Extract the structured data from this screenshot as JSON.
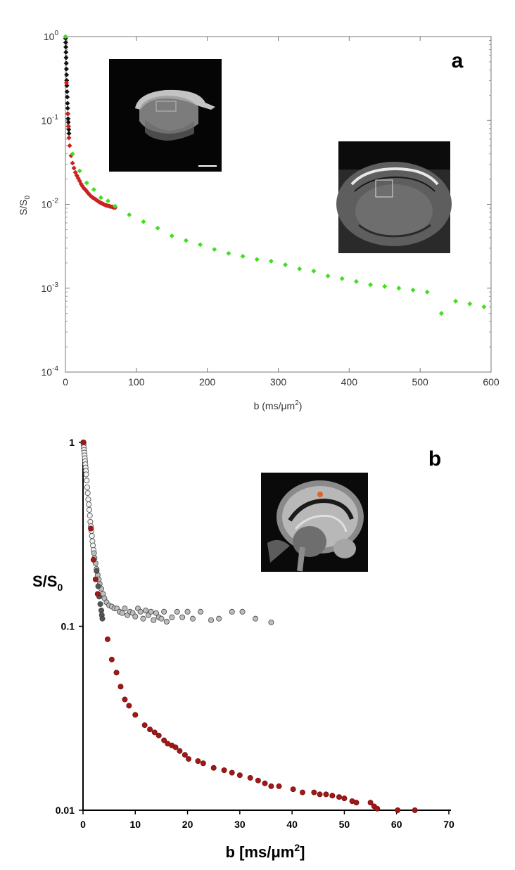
{
  "chart_data": [
    {
      "panel": "a",
      "type": "scatter",
      "panel_label": "a",
      "xlabel": "b (ms/μm",
      "xlabel_sup": "2",
      "xlabel_end": ")",
      "ylabel": "S/S",
      "ylabel_sub": "0",
      "yscale": "log",
      "xlim": [
        0,
        600
      ],
      "ylim": [
        0.0001,
        1
      ],
      "xticks": [
        "0",
        "100",
        "200",
        "300",
        "400",
        "500",
        "600"
      ],
      "yticks": [
        {
          "base": "10",
          "exp": "0"
        },
        {
          "base": "10",
          "exp": "-1"
        },
        {
          "base": "10",
          "exp": "-2"
        },
        {
          "base": "10",
          "exp": "-3"
        },
        {
          "base": "10",
          "exp": "-4"
        }
      ],
      "grid": false,
      "colors": {
        "black": "#111111",
        "red": "#cc2020",
        "green": "#44dd22"
      },
      "series": [
        {
          "color": "black",
          "x": [
            0.2,
            0.4,
            0.6,
            0.8,
            1.0,
            1.2,
            1.4,
            1.6,
            1.8,
            2.0,
            2.3,
            2.6,
            2.9,
            3.2,
            3.5,
            3.8,
            4.1,
            4.4,
            4.7,
            5.0
          ],
          "y": [
            0.95,
            0.85,
            0.75,
            0.65,
            0.56,
            0.48,
            0.41,
            0.35,
            0.3,
            0.26,
            0.22,
            0.19,
            0.16,
            0.14,
            0.12,
            0.105,
            0.095,
            0.085,
            0.078,
            0.07
          ]
        },
        {
          "color": "red",
          "x": [
            1.5,
            3,
            4,
            5,
            6,
            8,
            10,
            12,
            14,
            16,
            18,
            20,
            22,
            24,
            26,
            28,
            30,
            32,
            34,
            36,
            38,
            40,
            42,
            44,
            46,
            48,
            50,
            52,
            54,
            56,
            58,
            60,
            62,
            64,
            66,
            68,
            70
          ],
          "y": [
            0.28,
            0.12,
            0.085,
            0.062,
            0.05,
            0.038,
            0.031,
            0.027,
            0.024,
            0.022,
            0.0205,
            0.019,
            0.0175,
            0.0165,
            0.0155,
            0.015,
            0.0143,
            0.0136,
            0.013,
            0.0125,
            0.0121,
            0.0118,
            0.0115,
            0.0112,
            0.0109,
            0.0106,
            0.0104,
            0.0102,
            0.01,
            0.0098,
            0.0097,
            0.0096,
            0.0095,
            0.0094,
            0.0093,
            0.0092,
            0.0091
          ]
        },
        {
          "color": "green",
          "x": [
            0,
            10,
            20,
            30,
            40,
            50,
            60,
            70,
            90,
            110,
            130,
            150,
            170,
            190,
            210,
            230,
            250,
            270,
            290,
            310,
            330,
            350,
            370,
            390,
            410,
            430,
            450,
            470,
            490,
            510,
            530,
            550,
            570,
            590
          ],
          "y": [
            1.0,
            0.04,
            0.025,
            0.018,
            0.015,
            0.012,
            0.011,
            0.0095,
            0.0075,
            0.0062,
            0.0052,
            0.0042,
            0.0037,
            0.0033,
            0.0029,
            0.0026,
            0.0024,
            0.0022,
            0.0021,
            0.0019,
            0.0017,
            0.0016,
            0.0014,
            0.0013,
            0.0012,
            0.0011,
            0.00105,
            0.001,
            0.00095,
            0.0009,
            0.0005,
            0.0007,
            0.00065,
            0.0006
          ]
        }
      ]
    },
    {
      "panel": "b",
      "type": "scatter",
      "panel_label": "b",
      "xlabel": "b [ms/μm",
      "xlabel_sup": "2",
      "xlabel_end": "]",
      "ylabel": "S/S",
      "ylabel_sub": "0",
      "yscale": "log",
      "xlim": [
        0,
        70
      ],
      "ylim": [
        0.01,
        1
      ],
      "xticks": [
        "0",
        "10",
        "20",
        "30",
        "40",
        "50",
        "60",
        "70"
      ],
      "yticks": [
        "1",
        "0.1",
        "0.01"
      ],
      "grid": false,
      "colors": {
        "red": "#a01818",
        "gray": "#bdbdbd",
        "darkgray": "#555555",
        "white": "#f2f2f2"
      },
      "series": [
        {
          "color": "white",
          "x": [
            0.05,
            0.1,
            0.15,
            0.2,
            0.25,
            0.3,
            0.35,
            0.4,
            0.45,
            0.5,
            0.55,
            0.6,
            0.7,
            0.8,
            0.9,
            1.0,
            1.1,
            1.2,
            1.3,
            1.4,
            1.5,
            1.6,
            1.7,
            1.8,
            1.9,
            2.0
          ],
          "y": [
            1.0,
            0.97,
            0.94,
            0.91,
            0.88,
            0.85,
            0.82,
            0.79,
            0.76,
            0.73,
            0.7,
            0.67,
            0.62,
            0.57,
            0.53,
            0.49,
            0.46,
            0.43,
            0.4,
            0.37,
            0.35,
            0.33,
            0.31,
            0.29,
            0.275,
            0.26
          ]
        },
        {
          "color": "gray",
          "x": [
            2.1,
            2.2,
            2.4,
            2.6,
            2.8,
            3.0,
            3.2,
            3.5,
            3.8,
            4.1,
            4.5,
            5.0,
            5.5,
            6.0,
            6.5,
            7.0,
            7.5,
            8.0,
            8.5,
            9.0,
            9.5,
            10.0,
            10.5,
            11.0,
            11.5,
            12.0,
            12.5,
            13.0,
            13.5,
            14.0,
            14.5,
            15.0,
            15.5,
            16.0,
            17.0,
            18.0,
            19.0,
            20.0,
            21.0,
            22.5,
            24.5,
            26.0,
            28.5,
            30.5,
            33.0,
            36.0
          ],
          "y": [
            0.25,
            0.235,
            0.22,
            0.205,
            0.19,
            0.18,
            0.17,
            0.16,
            0.15,
            0.142,
            0.135,
            0.13,
            0.128,
            0.125,
            0.125,
            0.12,
            0.118,
            0.125,
            0.115,
            0.12,
            0.118,
            0.113,
            0.125,
            0.12,
            0.11,
            0.122,
            0.115,
            0.12,
            0.108,
            0.118,
            0.112,
            0.11,
            0.12,
            0.106,
            0.112,
            0.12,
            0.112,
            0.12,
            0.11,
            0.12,
            0.108,
            0.11,
            0.12,
            0.12,
            0.11,
            0.105
          ]
        },
        {
          "color": "darkgray",
          "x": [
            2.6,
            2.9,
            3.1,
            3.3,
            3.5,
            3.6,
            3.7
          ],
          "y": [
            0.2,
            0.165,
            0.145,
            0.132,
            0.122,
            0.115,
            0.11
          ]
        },
        {
          "color": "red",
          "x": [
            0.1,
            1.5,
            2.0,
            2.4,
            2.8,
            4.7,
            5.5,
            6.4,
            7.2,
            8.0,
            8.8,
            10.0,
            11.8,
            12.8,
            13.7,
            14.5,
            15.5,
            16.2,
            17.0,
            17.7,
            18.5,
            19.5,
            20.2,
            22.0,
            23.0,
            25.0,
            27.0,
            28.5,
            30.0,
            32.0,
            33.5,
            34.8,
            36.0,
            37.5,
            40.2,
            42.0,
            44.2,
            45.3,
            46.5,
            47.7,
            49.0,
            50.0,
            51.5,
            52.3,
            55.0,
            55.7,
            56.3,
            60.2,
            63.5
          ],
          "y": [
            1.0,
            0.34,
            0.23,
            0.18,
            0.15,
            0.085,
            0.066,
            0.056,
            0.047,
            0.04,
            0.037,
            0.033,
            0.029,
            0.0275,
            0.0265,
            0.0255,
            0.024,
            0.023,
            0.0225,
            0.022,
            0.021,
            0.02,
            0.019,
            0.0185,
            0.018,
            0.017,
            0.0165,
            0.016,
            0.0155,
            0.015,
            0.0145,
            0.014,
            0.0135,
            0.0135,
            0.013,
            0.0125,
            0.0125,
            0.0122,
            0.0122,
            0.012,
            0.0118,
            0.0116,
            0.0112,
            0.011,
            0.011,
            0.0105,
            0.0102,
            0.01,
            0.01
          ]
        }
      ]
    }
  ]
}
